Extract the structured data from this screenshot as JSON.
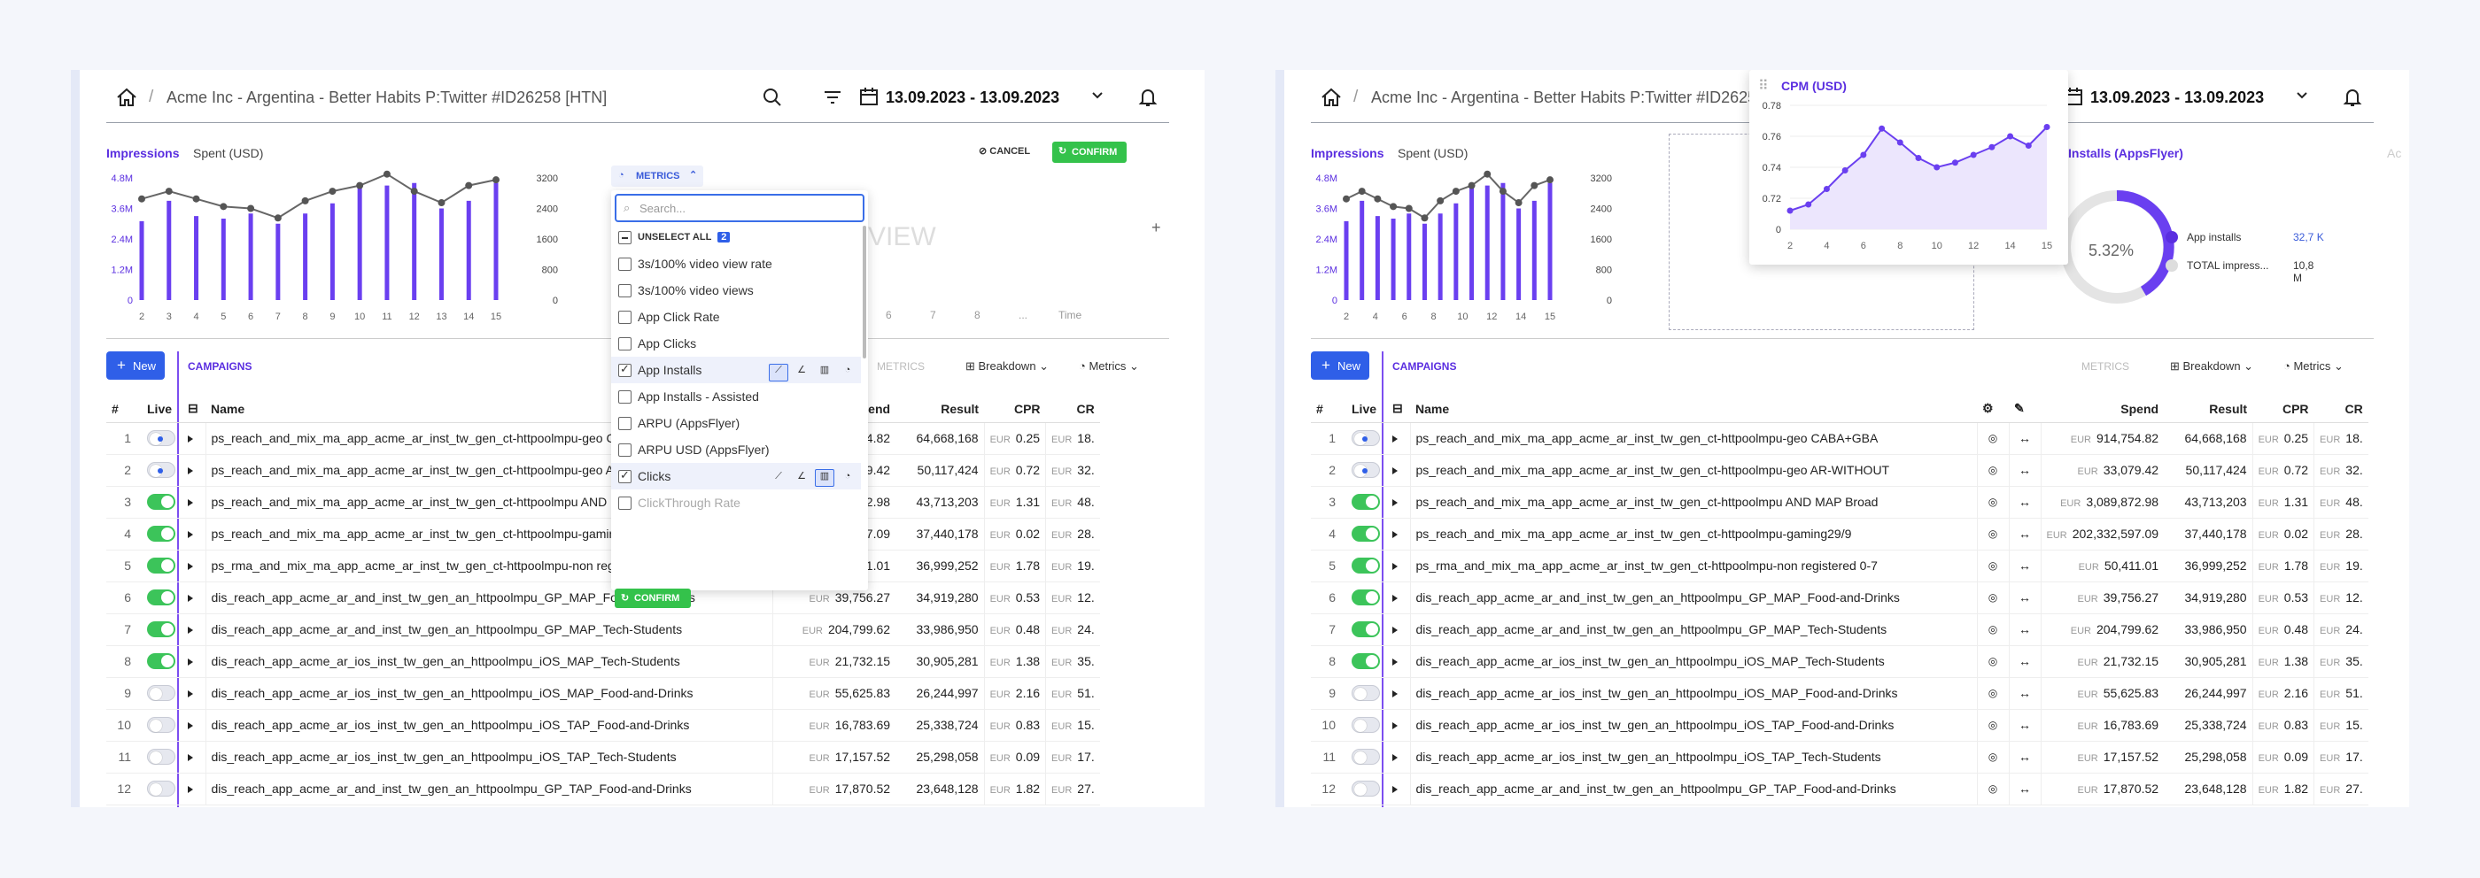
{
  "breadcrumb": "Acme Inc - Argentina - Better Habits P:Twitter #ID26258 [HTN]",
  "date_range": "13.09.2023 - 13.09.2023",
  "tabs": {
    "impressions": "Impressions",
    "spent": "Spent (USD)"
  },
  "left": {
    "metrics_btn": "METRICS",
    "search_placeholder": "Search...",
    "unselect_all": "UNSELECT ALL",
    "unselect_count": "2",
    "items": [
      "3s/100% video view rate",
      "3s/100% video views",
      "App Click Rate",
      "App Clicks",
      "App Installs",
      "App Installs - Assisted",
      "ARPU (AppsFlyer)",
      "ARPU USD (AppsFlyer)",
      "Clicks",
      "ClickThrough Rate"
    ],
    "confirm_dd": "CONFIRM",
    "cancel": "CANCEL",
    "confirm": "CONFIRM",
    "ghost_view": "VIEW",
    "ghost_time": "Time",
    "ghost_metrics": "METRICS",
    "ghost_x": [
      "6",
      "7",
      "8",
      "..."
    ]
  },
  "right": {
    "popup_title": "CPM (USD)",
    "installs_title": "Installs (AppsFlyer)",
    "donut_pct": "5.32%",
    "legend": [
      {
        "label": "App installs",
        "value": "32,7 K"
      },
      {
        "label": "TOTAL impress...",
        "value": "10,8 M"
      }
    ]
  },
  "impressions_chart": {
    "yleft": [
      "4.8M",
      "3.6M",
      "2.4M",
      "1.2M",
      "0"
    ],
    "yright": [
      "3200",
      "2400",
      "1600",
      "800",
      "0"
    ],
    "xleft": [
      "2",
      "3",
      "4",
      "5",
      "6",
      "7",
      "8",
      "9",
      "10",
      "11",
      "12",
      "13",
      "14",
      "15"
    ],
    "xright": [
      "2",
      "4",
      "6",
      "8",
      "10",
      "12",
      "14",
      "15"
    ]
  },
  "chart_data": [
    {
      "type": "bar",
      "title": "Impressions",
      "categories": [
        "2",
        "3",
        "4",
        "5",
        "6",
        "7",
        "8",
        "9",
        "10",
        "11",
        "12",
        "13",
        "14",
        "15"
      ],
      "series": [
        {
          "values": [
            3.1,
            3.9,
            3.3,
            3.2,
            3.4,
            3.0,
            3.4,
            3.8,
            4.4,
            4.5,
            4.6,
            3.6,
            3.9,
            4.6
          ]
        },
        {
          "values": [
            2650,
            2850,
            2650,
            2450,
            2400,
            2150,
            2600,
            2850,
            3000,
            3300,
            2850,
            2550,
            3000,
            3150
          ]
        }
      ]
    },
    {
      "type": "line",
      "title": "CPM (USD)",
      "x": [
        1,
        2,
        3,
        4,
        5,
        6,
        7,
        8,
        9,
        10,
        11,
        12,
        13,
        14,
        15
      ],
      "values": [
        0.712,
        0.716,
        0.726,
        0.738,
        0.748,
        0.765,
        0.756,
        0.746,
        0.74,
        0.743,
        0.748,
        0.753,
        0.76,
        0.754,
        0.766
      ],
      "yticks": [
        "0.78",
        "0.76",
        "0.74",
        "0.72",
        "0"
      ],
      "xticks": [
        "2",
        "4",
        "6",
        "8",
        "10",
        "12",
        "14",
        "15"
      ]
    }
  ],
  "toolbar": {
    "new": "New",
    "campaigns": "CAMPAIGNS",
    "breakdown": "Breakdown",
    "metrics": "Metrics",
    "metrics_dim": "METRICS"
  },
  "table": {
    "headers": {
      "idx": "#",
      "live": "Live",
      "name": "Name",
      "spend": "Spend",
      "result": "Result",
      "cpr": "CPR",
      "cr": "CR"
    },
    "currency": "EUR",
    "rows": [
      {
        "idx": "1",
        "live": "dot",
        "name": "ps_reach_and_mix_ma_app_acme_ar_inst_tw_gen_ct-httpoolmpu-geo  CABA+GBA",
        "spend": "914,754.82",
        "result": "64,668,168",
        "cpr": "0.25",
        "cr": "18."
      },
      {
        "idx": "2",
        "live": "dot",
        "name": "ps_reach_and_mix_ma_app_acme_ar_inst_tw_gen_ct-httpoolmpu-geo  AR-WITHOUT",
        "spend": "33,079.42",
        "result": "50,117,424",
        "cpr": "0.72",
        "cr": "32."
      },
      {
        "idx": "3",
        "live": "on",
        "name": "ps_reach_and_mix_ma_app_acme_ar_inst_tw_gen_ct-httpoolmpu AND MAP Broad",
        "spend": "3,089,872.98",
        "result": "43,713,203",
        "cpr": "1.31",
        "cr": "48."
      },
      {
        "idx": "4",
        "live": "on",
        "name": "ps_reach_and_mix_ma_app_acme_ar_inst_tw_gen_ct-httpoolmpu-gaming29/9",
        "spend": "202,332,597.09",
        "result": "37,440,178",
        "cpr": "0.02",
        "cr": "28."
      },
      {
        "idx": "5",
        "live": "on",
        "name": "ps_rma_and_mix_ma_app_acme_ar_inst_tw_gen_ct-httpoolmpu-non registered 0-7",
        "spend": "50,411.01",
        "result": "36,999,252",
        "cpr": "1.78",
        "cr": "19."
      },
      {
        "idx": "6",
        "live": "on",
        "name": "dis_reach_app_acme_ar_and_inst_tw_gen_an_httpoolmpu_GP_MAP_Food-and-Drinks",
        "spend": "39,756.27",
        "result": "34,919,280",
        "cpr": "0.53",
        "cr": "12."
      },
      {
        "idx": "7",
        "live": "on",
        "name": "dis_reach_app_acme_ar_and_inst_tw_gen_an_httpoolmpu_GP_MAP_Tech-Students",
        "spend": "204,799.62",
        "result": "33,986,950",
        "cpr": "0.48",
        "cr": "24."
      },
      {
        "idx": "8",
        "live": "on",
        "name": "dis_reach_app_acme_ar_ios_inst_tw_gen_an_httpoolmpu_iOS_MAP_Tech-Students",
        "spend": "21,732.15",
        "result": "30,905,281",
        "cpr": "1.38",
        "cr": "35."
      },
      {
        "idx": "9",
        "live": "off",
        "name": "dis_reach_app_acme_ar_ios_inst_tw_gen_an_httpoolmpu_iOS_MAP_Food-and-Drinks",
        "spend": "55,625.83",
        "result": "26,244,997",
        "cpr": "2.16",
        "cr": "51."
      },
      {
        "idx": "10",
        "live": "off",
        "name": "dis_reach_app_acme_ar_ios_inst_tw_gen_an_httpoolmpu_iOS_TAP_Food-and-Drinks",
        "spend": "16,783.69",
        "result": "25,338,724",
        "cpr": "0.83",
        "cr": "15."
      },
      {
        "idx": "11",
        "live": "off",
        "name": "dis_reach_app_acme_ar_ios_inst_tw_gen_an_httpoolmpu_iOS_TAP_Tech-Students",
        "spend": "17,157.52",
        "result": "25,298,058",
        "cpr": "0.09",
        "cr": "17."
      },
      {
        "idx": "12",
        "live": "off",
        "name": "dis_reach_app_acme_ar_and_inst_tw_gen_an_httpoolmpu_GP_TAP_Food-and-Drinks",
        "spend": "17,870.52",
        "result": "23,648,128",
        "cpr": "1.82",
        "cr": "27."
      }
    ]
  },
  "colors": {
    "accent": "#5a2ee0",
    "primary": "#2f5fe8",
    "confirm": "#34c24b",
    "bar": "#6a3ff0"
  },
  "icons": [
    "home-icon",
    "search-icon",
    "filter-icon",
    "calendar-icon",
    "chevron-down-icon",
    "bell-icon",
    "breakdown-icon",
    "metrics-icon",
    "expand-icon",
    "edit-icon",
    "settings-icon"
  ]
}
